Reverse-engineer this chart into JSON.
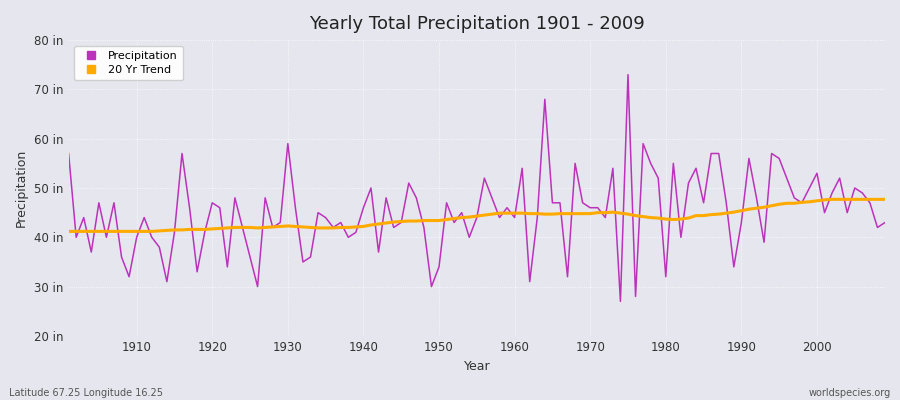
{
  "title": "Yearly Total Precipitation 1901 - 2009",
  "xlabel": "Year",
  "ylabel": "Precipitation",
  "ylim": [
    20,
    80
  ],
  "yticks": [
    20,
    30,
    40,
    50,
    60,
    70,
    80
  ],
  "ytick_labels": [
    "20 in",
    "30 in",
    "40 in",
    "50 in",
    "60 in",
    "70 in",
    "80 in"
  ],
  "xlim": [
    1901,
    2009
  ],
  "bg_color": "#e6e6ee",
  "grid_color": "#ffffff",
  "precip_color": "#bb33bb",
  "trend_color": "#ffaa00",
  "footer_left": "Latitude 67.25 Longitude 16.25",
  "footer_right": "worldspecies.org",
  "legend_labels": [
    "Precipitation",
    "20 Yr Trend"
  ],
  "years": [
    1901,
    1902,
    1903,
    1904,
    1905,
    1906,
    1907,
    1908,
    1909,
    1910,
    1911,
    1912,
    1913,
    1914,
    1915,
    1916,
    1917,
    1918,
    1919,
    1920,
    1921,
    1922,
    1923,
    1924,
    1925,
    1926,
    1927,
    1928,
    1929,
    1930,
    1931,
    1932,
    1933,
    1934,
    1935,
    1936,
    1937,
    1938,
    1939,
    1940,
    1941,
    1942,
    1943,
    1944,
    1945,
    1946,
    1947,
    1948,
    1949,
    1950,
    1951,
    1952,
    1953,
    1954,
    1955,
    1956,
    1957,
    1958,
    1959,
    1960,
    1961,
    1962,
    1963,
    1964,
    1965,
    1966,
    1967,
    1968,
    1969,
    1970,
    1971,
    1972,
    1973,
    1974,
    1975,
    1976,
    1977,
    1978,
    1979,
    1980,
    1981,
    1982,
    1983,
    1984,
    1985,
    1986,
    1987,
    1988,
    1989,
    1990,
    1991,
    1992,
    1993,
    1994,
    1995,
    1996,
    1997,
    1998,
    1999,
    2000,
    2001,
    2002,
    2003,
    2004,
    2005,
    2006,
    2007,
    2008,
    2009
  ],
  "precipitation": [
    57,
    40,
    44,
    37,
    47,
    40,
    47,
    36,
    32,
    40,
    44,
    40,
    38,
    31,
    41,
    57,
    46,
    33,
    41,
    47,
    46,
    34,
    48,
    42,
    36,
    30,
    48,
    42,
    43,
    59,
    46,
    35,
    36,
    45,
    44,
    42,
    43,
    40,
    41,
    46,
    50,
    37,
    48,
    42,
    43,
    51,
    48,
    42,
    30,
    34,
    47,
    43,
    45,
    40,
    44,
    52,
    48,
    44,
    46,
    44,
    54,
    31,
    44,
    68,
    47,
    47,
    32,
    55,
    47,
    46,
    46,
    44,
    54,
    27,
    73,
    28,
    59,
    55,
    52,
    32,
    55,
    40,
    51,
    54,
    47,
    57,
    57,
    47,
    34,
    43,
    56,
    48,
    39,
    57,
    56,
    52,
    48,
    47,
    50,
    53,
    45,
    49,
    52,
    45,
    50,
    49,
    47,
    42,
    43
  ],
  "trend": [
    41.2,
    41.2,
    41.2,
    41.2,
    41.2,
    41.2,
    41.2,
    41.2,
    41.2,
    41.2,
    41.2,
    41.2,
    41.3,
    41.4,
    41.5,
    41.5,
    41.6,
    41.6,
    41.6,
    41.7,
    41.8,
    41.9,
    42.0,
    42.0,
    42.0,
    41.9,
    42.0,
    42.1,
    42.2,
    42.3,
    42.2,
    42.1,
    42.0,
    41.9,
    41.9,
    41.9,
    42.0,
    42.0,
    42.1,
    42.2,
    42.5,
    42.7,
    42.9,
    43.1,
    43.2,
    43.3,
    43.3,
    43.4,
    43.4,
    43.4,
    43.6,
    43.8,
    44.0,
    44.1,
    44.3,
    44.5,
    44.7,
    44.9,
    44.9,
    44.9,
    44.9,
    44.8,
    44.8,
    44.7,
    44.7,
    44.8,
    44.8,
    44.8,
    44.8,
    44.8,
    45.0,
    45.0,
    45.1,
    44.9,
    44.7,
    44.4,
    44.2,
    44.0,
    43.9,
    43.7,
    43.6,
    43.7,
    43.9,
    44.4,
    44.4,
    44.6,
    44.7,
    44.9,
    45.1,
    45.4,
    45.7,
    45.9,
    46.1,
    46.4,
    46.7,
    46.9,
    46.9,
    47.1,
    47.2,
    47.4,
    47.6,
    47.7,
    47.7,
    47.7,
    47.7,
    47.7,
    47.7,
    47.7,
    47.7
  ]
}
